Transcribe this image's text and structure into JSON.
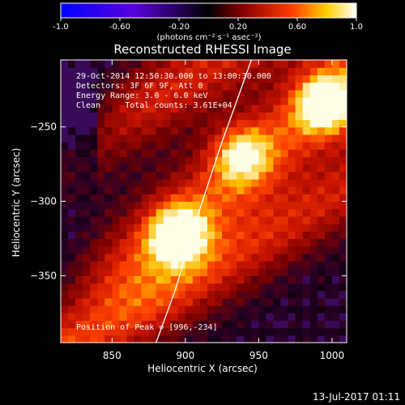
{
  "chart_data": {
    "type": "heatmap",
    "title": "Reconstructed RHESSI Image",
    "xlabel": "Heliocentric X (arcsec)",
    "ylabel": "Heliocentric Y (arcsec)",
    "xlim": [
      815,
      1010
    ],
    "ylim": [
      -395,
      -205
    ],
    "xticks": [
      850,
      900,
      950,
      1000
    ],
    "yticks": [
      -350,
      -300,
      -250
    ],
    "colorbar": {
      "range": [
        -1.0,
        1.0
      ],
      "ticks": [
        "-1.0",
        "-0.60",
        "-0.20",
        "0.20",
        "0.60",
        "1.0"
      ],
      "unit_label": "(photons cm⁻² s⁻¹ asec⁻²)",
      "colors": [
        "#0000ff",
        "#5a00d8",
        "#000000",
        "#8b0000",
        "#ff3c00",
        "#ffd000",
        "#ffffff"
      ]
    },
    "annotations": {
      "time_range": "29-Oct-2014 12:50:30.000 to 13:00:30.000",
      "detectors": "Detectors: 3F 6F 9F, Att 0",
      "energy": "Energy Range: 3.0 - 6.0 keV",
      "method_counts": "Clean     Total counts: 3.61E+04",
      "peak": "Position of Peak = [996,-234]"
    },
    "peak_position": [
      996,
      -234
    ],
    "sources": [
      {
        "x": 895,
        "y": -322,
        "peak": 0.95
      },
      {
        "x": 996,
        "y": -234,
        "peak": 1.0
      },
      {
        "x": 938,
        "y": -268,
        "peak": 0.7
      }
    ],
    "limb_curve": {
      "x": [
        880,
        893,
        905,
        915,
        925,
        936,
        945
      ],
      "y": [
        -395,
        -360,
        -320,
        -290,
        -260,
        -230,
        -205
      ]
    },
    "plot_date": "13-Jul-2017 01:11"
  }
}
